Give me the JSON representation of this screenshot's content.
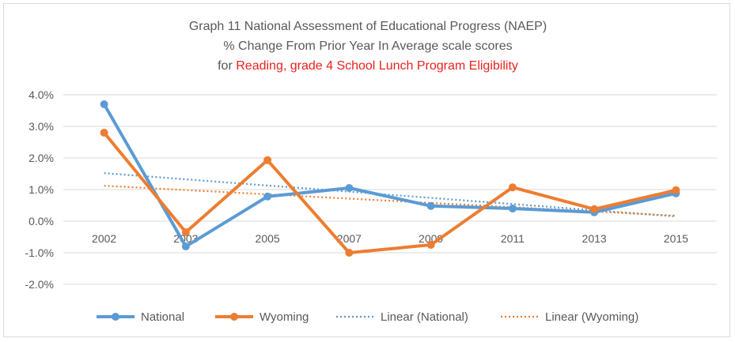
{
  "chart_data": {
    "type": "line",
    "title_lines": [
      "Graph 11 National Assessment of Educational Progress (NAEP)",
      "% Change From Prior Year In Average scale scores"
    ],
    "title_line3_prefix": "for ",
    "title_line3_highlight": "Reading, grade 4 School Lunch Program Eligibility",
    "categories": [
      "2002",
      "2003",
      "2005",
      "2007",
      "2009",
      "2011",
      "2013",
      "2015"
    ],
    "y_ticks": [
      "4.0%",
      "3.0%",
      "2.0%",
      "1.0%",
      "0.0%",
      "-1.0%",
      "-2.0%"
    ],
    "ylim": [
      -2.0,
      4.0
    ],
    "grid": true,
    "legend_position": "bottom",
    "series": [
      {
        "name": "National",
        "color": "#5b9bd5",
        "values": [
          3.7,
          -0.8,
          0.78,
          1.05,
          0.48,
          0.4,
          0.28,
          0.88
        ]
      },
      {
        "name": "Wyoming",
        "color": "#ed7d31",
        "values": [
          2.8,
          -0.35,
          1.93,
          -1.0,
          -0.75,
          1.07,
          0.38,
          0.98
        ]
      }
    ],
    "trendlines": [
      {
        "name": "Linear (National)",
        "color": "#5b9bd5",
        "start": 1.52,
        "end": 0.15
      },
      {
        "name": "Linear (Wyoming)",
        "color": "#ed7d31",
        "start": 1.12,
        "end": 0.17
      }
    ]
  }
}
